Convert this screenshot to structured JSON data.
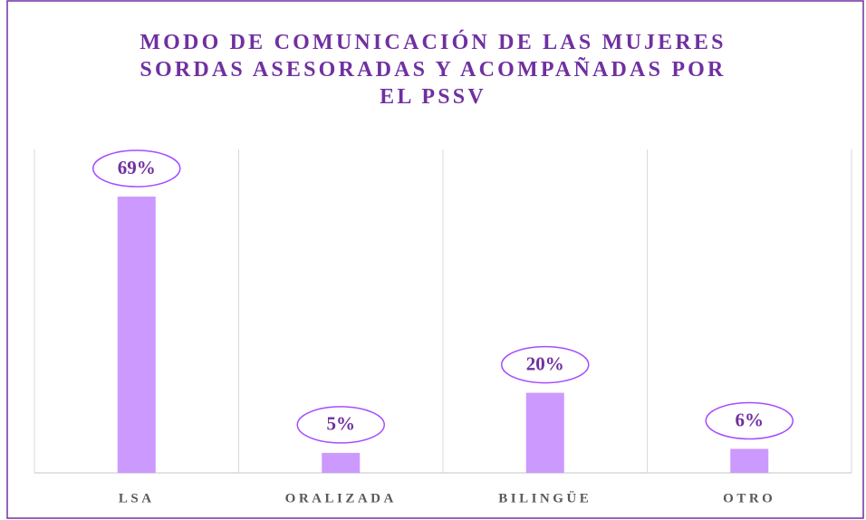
{
  "chart_data": {
    "type": "bar",
    "title": "MODO DE COMUNICACIÓN DE LAS MUJERES SORDAS ASESORADAS Y ACOMPAÑADAS POR EL PSSV",
    "categories": [
      "LSA",
      "ORALIZADA",
      "BILINGÜE",
      "OTRO"
    ],
    "values": [
      69,
      5,
      20,
      6
    ],
    "value_labels": [
      "69%",
      "5%",
      "20%",
      "6%"
    ],
    "color": "#cc99ff"
  }
}
